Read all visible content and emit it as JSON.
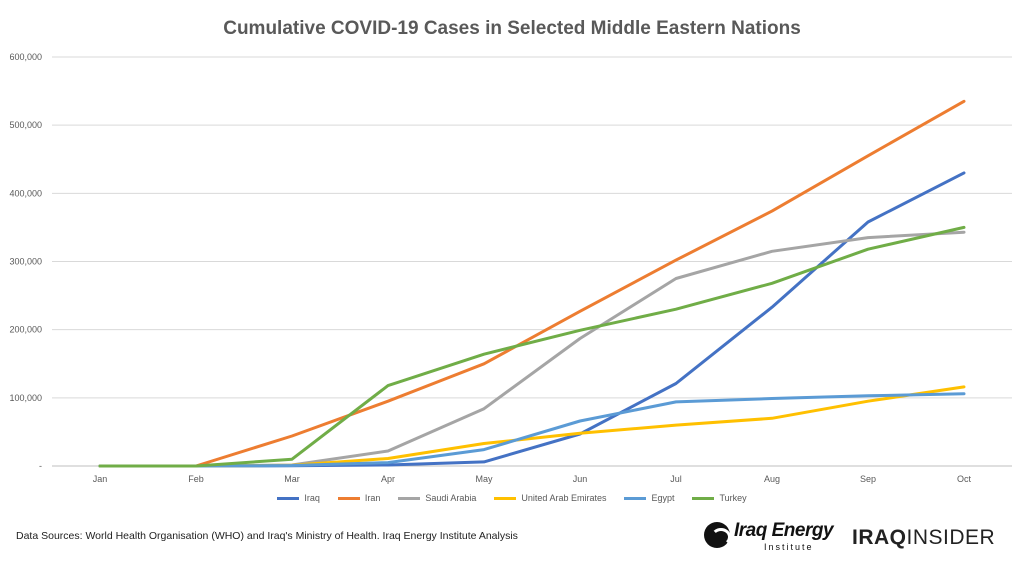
{
  "chart_data": {
    "type": "line",
    "title": "Cumulative COVID-19 Cases in Selected Middle Eastern Nations",
    "categories": [
      "Jan",
      "Feb",
      "Mar",
      "Apr",
      "May",
      "Jun",
      "Jul",
      "Aug",
      "Sep",
      "Oct"
    ],
    "y_ticks": [
      "-",
      "100,000",
      "200,000",
      "300,000",
      "400,000",
      "500,000",
      "600,000"
    ],
    "ylim": [
      0,
      600000
    ],
    "grid": true,
    "legend_position": "bottom",
    "series": [
      {
        "name": "Iraq",
        "color": "#4472C4",
        "values": [
          0,
          0,
          300,
          1500,
          6000,
          47000,
          121000,
          233000,
          358000,
          430000
        ]
      },
      {
        "name": "Iran",
        "color": "#ED7D31",
        "values": [
          0,
          0,
          44000,
          95000,
          150000,
          227000,
          302000,
          374000,
          455000,
          535000
        ]
      },
      {
        "name": "Saudi Arabia",
        "color": "#A5A5A5",
        "values": [
          0,
          0,
          1500,
          22000,
          84000,
          187000,
          275000,
          315000,
          335000,
          343000
        ]
      },
      {
        "name": "United Arab Emirates",
        "color": "#FFC000",
        "values": [
          0,
          0,
          1000,
          11000,
          33000,
          48000,
          60000,
          70000,
          95000,
          116000
        ]
      },
      {
        "name": "Egypt",
        "color": "#5B9BD5",
        "values": [
          0,
          0,
          700,
          5000,
          24000,
          66000,
          94000,
          99000,
          103000,
          106000
        ]
      },
      {
        "name": "Turkey",
        "color": "#70AD47",
        "values": [
          0,
          0,
          10000,
          118000,
          164000,
          199000,
          230000,
          268000,
          318000,
          350000
        ]
      }
    ]
  },
  "footer": {
    "source": "Data Sources: World Health Organisation (WHO) and Iraq's Ministry of Health. Iraq Energy Institute Analysis",
    "logo_left": {
      "name": "Iraq Energy",
      "sub": "Institute"
    },
    "logo_right": {
      "part1": "IRAQ",
      "part2": "INSIDER"
    }
  }
}
